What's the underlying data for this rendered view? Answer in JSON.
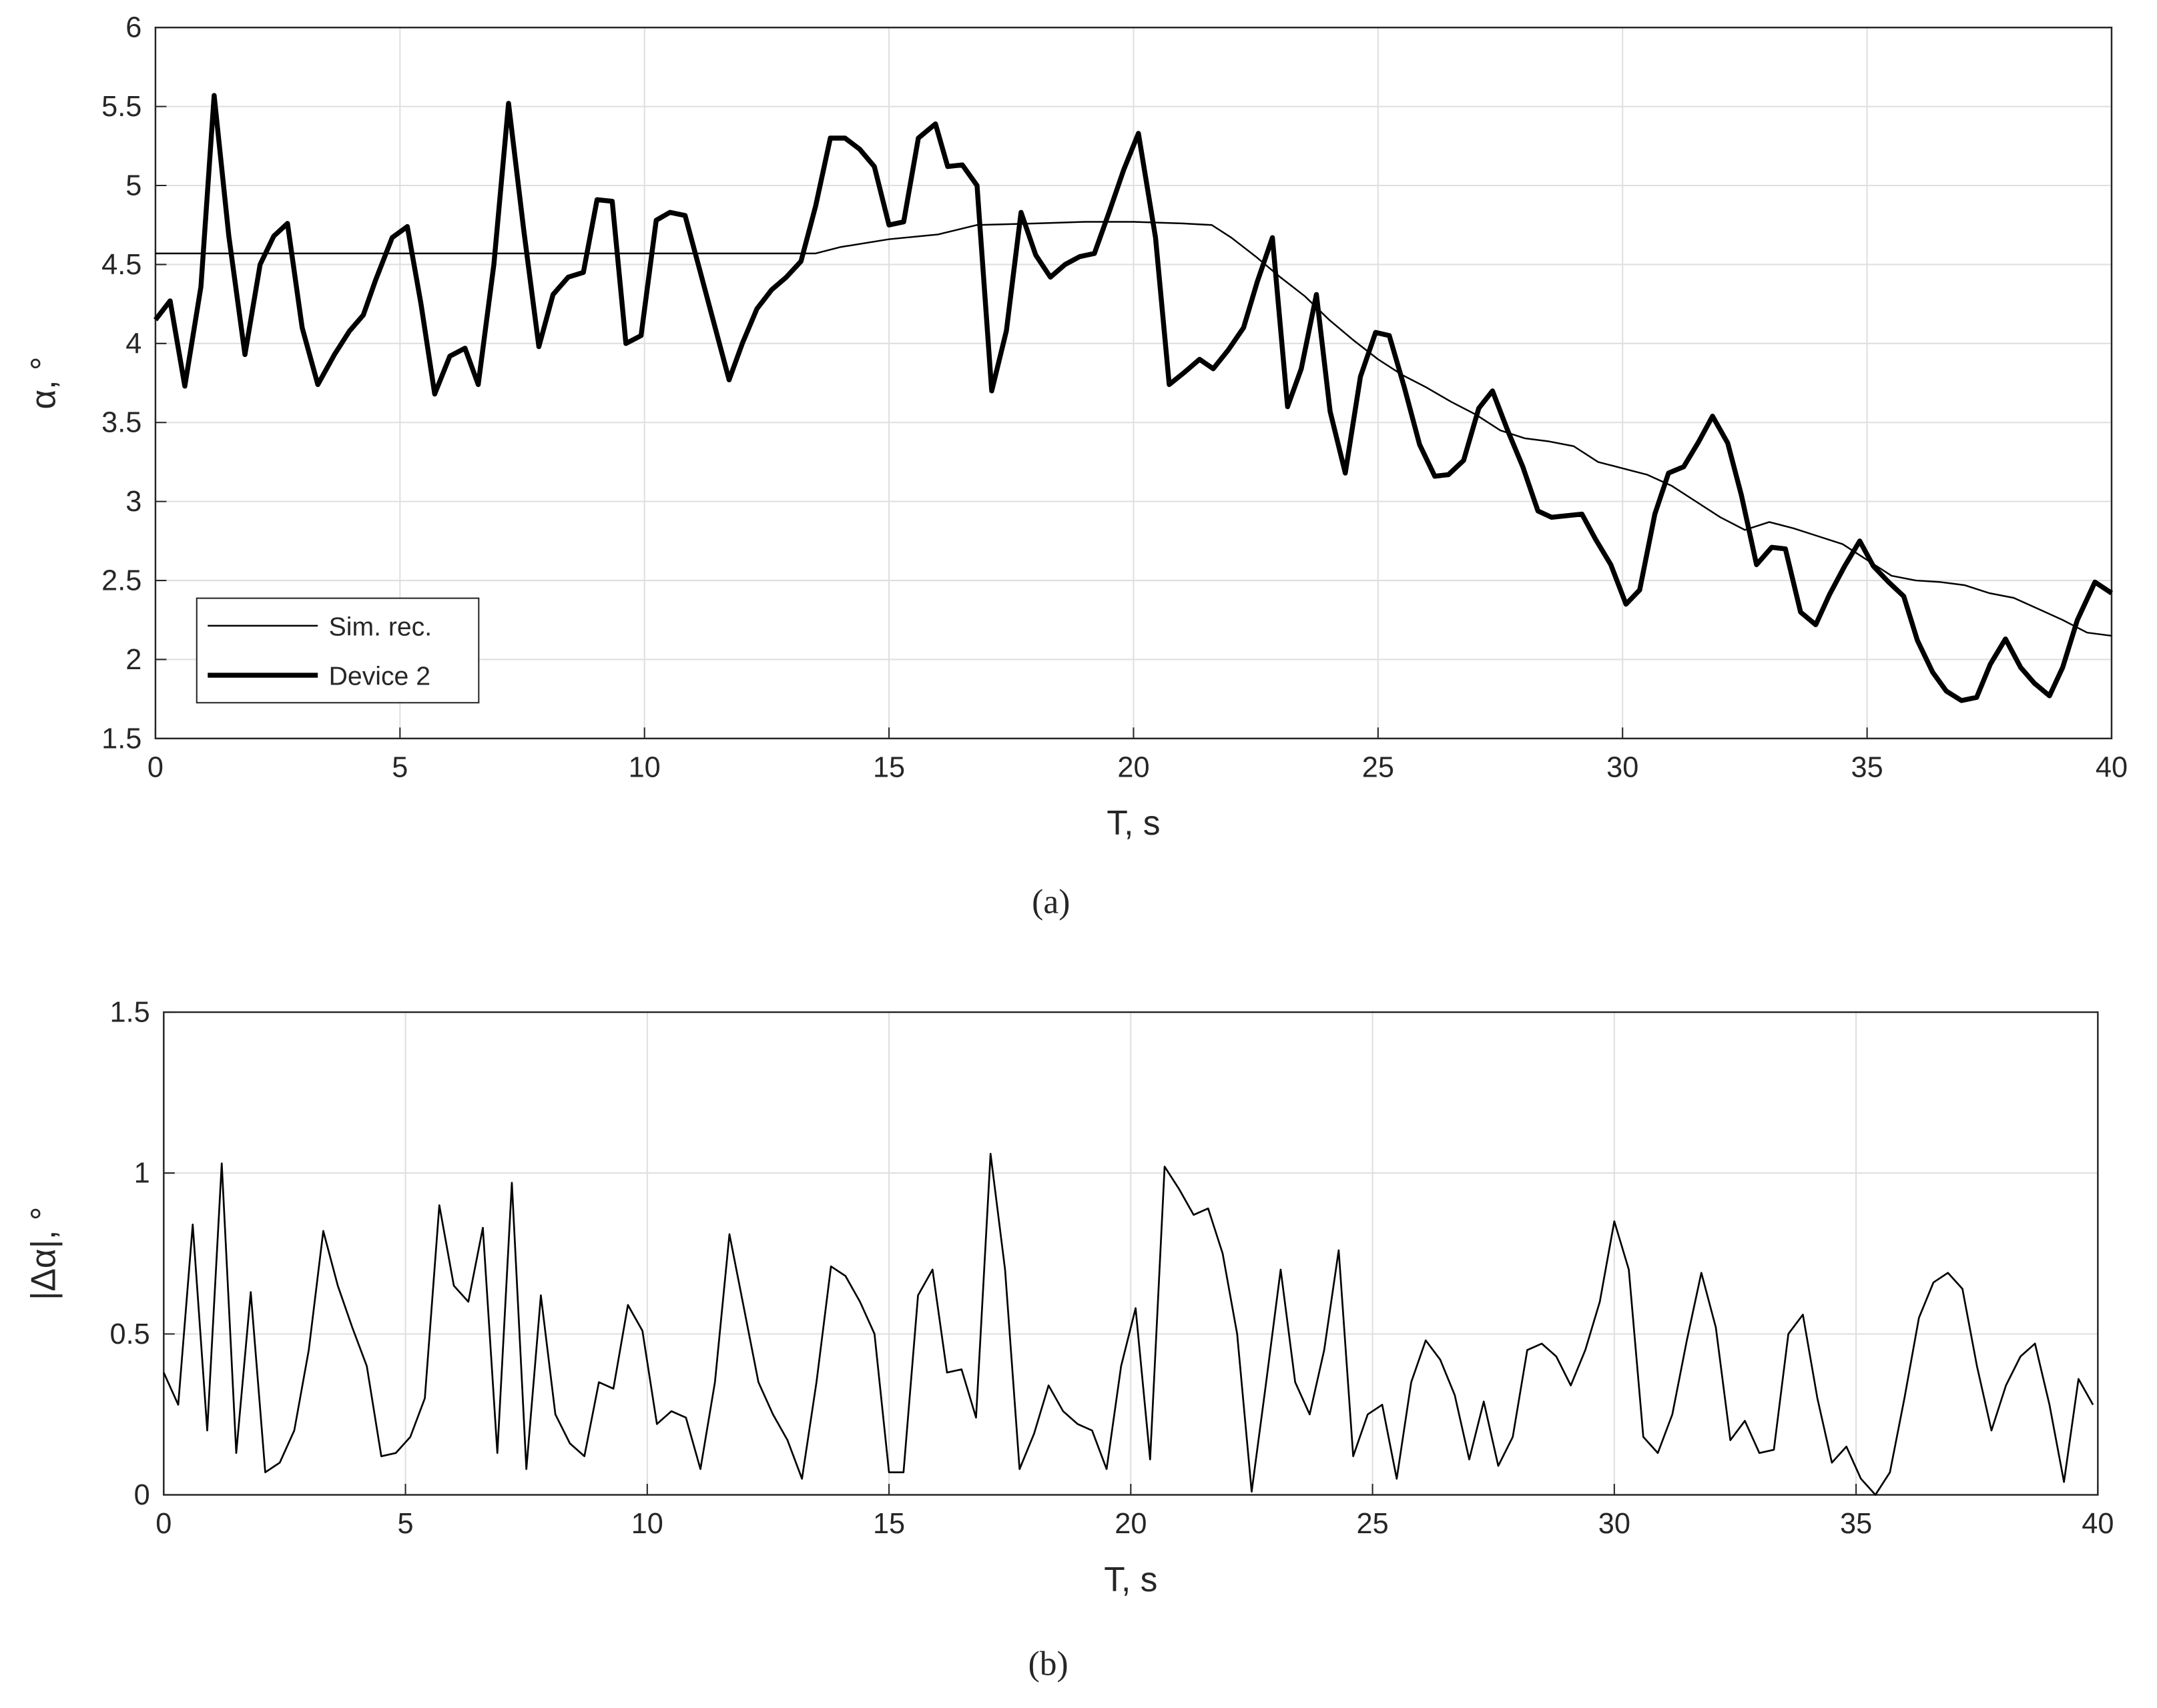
{
  "chart_data": [
    {
      "type": "line",
      "caption": "(a)",
      "x_label": "T, s",
      "y_label": "α, °",
      "xlim": [
        0,
        40
      ],
      "ylim": [
        1.5,
        6
      ],
      "xticks": [
        0,
        5,
        10,
        15,
        20,
        25,
        30,
        35,
        40
      ],
      "yticks": [
        1.5,
        2,
        2.5,
        3,
        3.5,
        4,
        4.5,
        5,
        5.5,
        6
      ],
      "grid": true,
      "legend": "lower left",
      "series": [
        {
          "name": "Sim. rec.",
          "color": "#000000",
          "width": 1.2,
          "x": [
            0,
            13.5,
            14,
            15,
            16,
            16.8,
            18,
            19,
            20,
            21,
            21.6,
            22,
            22.5,
            23,
            23.5,
            24,
            24.5,
            25,
            25.5,
            26,
            26.5,
            27,
            27.5,
            28,
            28.5,
            29,
            29.5,
            30,
            30.5,
            31,
            31.5,
            32,
            32.5,
            33,
            33.5,
            34,
            34.5,
            35,
            35.5,
            36,
            36.5,
            37,
            37.5,
            38,
            38.5,
            39,
            39.5,
            40
          ],
          "values": [
            4.57,
            4.57,
            4.61,
            4.66,
            4.69,
            4.75,
            4.76,
            4.77,
            4.77,
            4.76,
            4.75,
            4.67,
            4.55,
            4.42,
            4.3,
            4.15,
            4.02,
            3.9,
            3.8,
            3.72,
            3.63,
            3.55,
            3.45,
            3.4,
            3.38,
            3.35,
            3.25,
            3.21,
            3.17,
            3.1,
            3.0,
            2.9,
            2.82,
            2.87,
            2.83,
            2.78,
            2.73,
            2.63,
            2.53,
            2.5,
            2.49,
            2.47,
            2.42,
            2.39,
            2.32,
            2.25,
            2.17,
            2.15
          ]
        },
        {
          "name": "Device 2",
          "color": "#000000",
          "width": 3.6,
          "x": [
            0,
            0.3,
            0.6,
            0.93,
            1.2,
            1.5,
            1.83,
            2.14,
            2.42,
            2.7,
            3.0,
            3.32,
            3.66,
            3.97,
            4.25,
            4.5,
            4.84,
            5.15,
            5.43,
            5.71,
            6.02,
            6.33,
            6.6,
            6.92,
            7.22,
            7.53,
            7.84,
            8.13,
            8.44,
            8.75,
            9.03,
            9.34,
            9.62,
            9.93,
            10.24,
            10.52,
            10.83,
            11.1,
            11.73,
            12.0,
            12.3,
            12.6,
            12.9,
            13.2,
            13.5,
            13.8,
            14.1,
            14.4,
            14.7,
            15.0,
            15.3,
            15.6,
            15.95,
            16.2,
            16.5,
            16.8,
            17.1,
            17.4,
            17.7,
            18.0,
            18.3,
            18.6,
            18.9,
            19.2,
            19.5,
            19.8,
            20.1,
            20.45,
            20.73,
            21.05,
            21.35,
            21.63,
            21.94,
            22.25,
            22.53,
            22.84,
            23.15,
            23.43,
            23.74,
            24.02,
            24.33,
            24.64,
            24.95,
            25.23,
            25.54,
            25.85,
            26.16,
            26.44,
            26.75,
            27.06,
            27.34,
            27.65,
            27.96,
            28.27,
            28.55,
            28.86,
            29.17,
            29.45,
            29.76,
            30.07,
            30.35,
            30.66,
            30.94,
            31.25,
            31.56,
            31.84,
            32.15,
            32.43,
            32.74,
            33.05,
            33.33,
            33.64,
            33.95,
            34.23,
            34.54,
            34.85,
            35.13,
            35.44,
            35.75,
            36.03,
            36.34,
            36.62,
            36.93,
            37.24,
            37.52,
            37.83,
            38.14,
            38.42,
            38.73,
            39.0,
            39.3,
            39.66,
            40
          ],
          "values": [
            4.15,
            4.27,
            3.73,
            4.36,
            5.57,
            4.68,
            3.93,
            4.5,
            4.68,
            4.76,
            4.1,
            3.74,
            3.93,
            4.08,
            4.18,
            4.4,
            4.67,
            4.74,
            4.25,
            3.68,
            3.92,
            3.97,
            3.74,
            4.5,
            5.52,
            4.72,
            3.98,
            4.31,
            4.42,
            4.45,
            4.91,
            4.9,
            4.0,
            4.05,
            4.78,
            4.83,
            4.81,
            4.5,
            3.77,
            4.0,
            4.22,
            4.34,
            4.42,
            4.52,
            4.87,
            5.3,
            5.3,
            5.23,
            5.12,
            4.75,
            4.77,
            5.3,
            5.39,
            5.12,
            5.13,
            5.0,
            3.7,
            4.08,
            4.83,
            4.56,
            4.42,
            4.5,
            4.55,
            4.57,
            4.83,
            5.1,
            5.33,
            4.67,
            3.74,
            3.82,
            3.9,
            3.84,
            3.96,
            4.1,
            4.39,
            4.67,
            3.6,
            3.84,
            4.31,
            3.57,
            3.18,
            3.79,
            4.07,
            4.05,
            3.72,
            3.36,
            3.16,
            3.17,
            3.26,
            3.59,
            3.7,
            3.45,
            3.22,
            2.94,
            2.9,
            2.91,
            2.92,
            2.76,
            2.6,
            2.35,
            2.44,
            2.92,
            3.18,
            3.22,
            3.38,
            3.54,
            3.37,
            3.04,
            2.6,
            2.71,
            2.7,
            2.3,
            2.22,
            2.41,
            2.59,
            2.75,
            2.59,
            2.49,
            2.4,
            2.12,
            1.92,
            1.8,
            1.74,
            1.76,
            1.97,
            2.13,
            1.95,
            1.85,
            1.77,
            1.95,
            2.25,
            2.49,
            2.42
          ]
        }
      ]
    },
    {
      "type": "line",
      "caption": "(b)",
      "x_label": "T, s",
      "y_label": "|Δα|, °",
      "xlim": [
        0,
        40
      ],
      "ylim": [
        0,
        1.5
      ],
      "xticks": [
        0,
        5,
        10,
        15,
        20,
        25,
        30,
        35,
        40
      ],
      "yticks": [
        0,
        0.5,
        1,
        1.5
      ],
      "grid": true,
      "series": [
        {
          "color": "#000000",
          "width": 1.3,
          "x": [
            0,
            0.3,
            0.6,
            0.9,
            1.2,
            1.5,
            1.8,
            2.1,
            2.4,
            2.7,
            3.0,
            3.3,
            3.6,
            3.9,
            4.2,
            4.5,
            4.8,
            5.1,
            5.4,
            5.7,
            6.0,
            6.3,
            6.6,
            6.9,
            7.2,
            7.5,
            7.8,
            8.1,
            8.4,
            8.7,
            9.0,
            9.3,
            9.6,
            9.9,
            10.2,
            10.5,
            10.8,
            11.1,
            11.4,
            11.7,
            12.0,
            12.3,
            12.6,
            12.9,
            13.2,
            13.5,
            13.8,
            14.1,
            14.4,
            14.7,
            15.0,
            15.3,
            15.6,
            15.9,
            16.2,
            16.5,
            16.8,
            17.1,
            17.4,
            17.7,
            18.0,
            18.3,
            18.6,
            18.9,
            19.2,
            19.5,
            19.8,
            20.1,
            20.4,
            20.7,
            21.0,
            21.3,
            21.6,
            21.9,
            22.2,
            22.5,
            22.8,
            23.1,
            23.4,
            23.7,
            24.0,
            24.3,
            24.6,
            24.9,
            25.2,
            25.5,
            25.8,
            26.1,
            26.4,
            26.7,
            27.0,
            27.3,
            27.6,
            27.9,
            28.2,
            28.5,
            28.8,
            29.1,
            29.4,
            29.7,
            30.0,
            30.3,
            30.6,
            30.9,
            31.2,
            31.5,
            31.8,
            32.1,
            32.4,
            32.7,
            33.0,
            33.3,
            33.6,
            33.9,
            34.2,
            34.5,
            34.8,
            35.1,
            35.4,
            35.7,
            36.0,
            36.3,
            36.6,
            36.9,
            37.2,
            37.5,
            37.8,
            38.1,
            38.4,
            38.7,
            39.0,
            39.3,
            39.6,
            39.9
          ],
          "values": [
            0.38,
            0.28,
            0.84,
            0.2,
            1.03,
            0.13,
            0.63,
            0.07,
            0.1,
            0.2,
            0.45,
            0.82,
            0.65,
            0.52,
            0.4,
            0.12,
            0.13,
            0.18,
            0.3,
            0.9,
            0.65,
            0.6,
            0.83,
            0.13,
            0.97,
            0.08,
            0.62,
            0.25,
            0.16,
            0.12,
            0.35,
            0.33,
            0.59,
            0.51,
            0.22,
            0.26,
            0.24,
            0.08,
            0.35,
            0.81,
            0.58,
            0.35,
            0.25,
            0.17,
            0.05,
            0.35,
            0.71,
            0.68,
            0.6,
            0.5,
            0.07,
            0.07,
            0.62,
            0.7,
            0.38,
            0.39,
            0.24,
            1.06,
            0.7,
            0.08,
            0.19,
            0.34,
            0.26,
            0.22,
            0.2,
            0.08,
            0.4,
            0.58,
            0.11,
            1.02,
            0.95,
            0.87,
            0.89,
            0.75,
            0.5,
            0.01,
            0.35,
            0.7,
            0.35,
            0.25,
            0.45,
            0.76,
            0.12,
            0.25,
            0.28,
            0.05,
            0.35,
            0.48,
            0.42,
            0.31,
            0.11,
            0.29,
            0.09,
            0.18,
            0.45,
            0.47,
            0.43,
            0.34,
            0.45,
            0.6,
            0.85,
            0.7,
            0.18,
            0.13,
            0.25,
            0.48,
            0.69,
            0.52,
            0.17,
            0.23,
            0.13,
            0.14,
            0.5,
            0.56,
            0.3,
            0.1,
            0.15,
            0.05,
            0.0,
            0.07,
            0.3,
            0.55,
            0.66,
            0.69,
            0.64,
            0.4,
            0.2,
            0.34,
            0.43,
            0.47,
            0.28,
            0.04,
            0.36,
            0.28
          ]
        }
      ]
    }
  ]
}
